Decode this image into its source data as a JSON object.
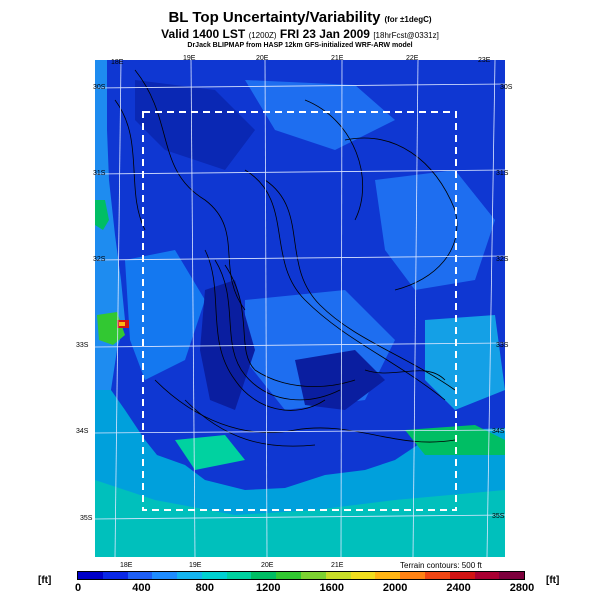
{
  "header": {
    "title": "BL Top Uncertainty/Variability",
    "title_note": "(for ±1degC)",
    "valid_main": "Valid 1400 LST",
    "valid_code": "(1200Z)",
    "valid_date": "FRI 23 Jan 2009",
    "valid_fcst": "[18hrFcst@0331z]",
    "credit": "DrJack BLIPMAP from HASP 12km GFS-initialized WRF-ARW model"
  },
  "map": {
    "top_lon_labels": [
      "18E",
      "19E",
      "20E",
      "21E",
      "22E",
      "23E"
    ],
    "bottom_lon_labels": [
      "18E",
      "19E",
      "20E",
      "21E"
    ],
    "left_lat_labels": [
      "30S",
      "31S",
      "32S",
      "33S",
      "34S",
      "35S"
    ],
    "right_lat_labels": [
      "30S",
      "31S",
      "32S",
      "33S",
      "34S",
      "35S"
    ],
    "terrain_note": "Terrain contours: 500 ft",
    "land_color": "#0f37d2",
    "ocean_color": "#00a0dc"
  },
  "legend": {
    "unit_left": "[ft]",
    "unit_right": "[ft]",
    "ticks": [
      "0",
      "400",
      "800",
      "1200",
      "1600",
      "2000",
      "2400",
      "2800"
    ],
    "range": [
      0,
      2800
    ],
    "colors": [
      "#0000c8",
      "#0a28e6",
      "#1e5ff5",
      "#1e8cff",
      "#14b4f0",
      "#00d2d2",
      "#00d2a0",
      "#00be64",
      "#32c832",
      "#7dd232",
      "#c8dc28",
      "#f0dc1e",
      "#ffb414",
      "#ff8214",
      "#f04614",
      "#d21414",
      "#aa0032",
      "#7d003c"
    ]
  }
}
